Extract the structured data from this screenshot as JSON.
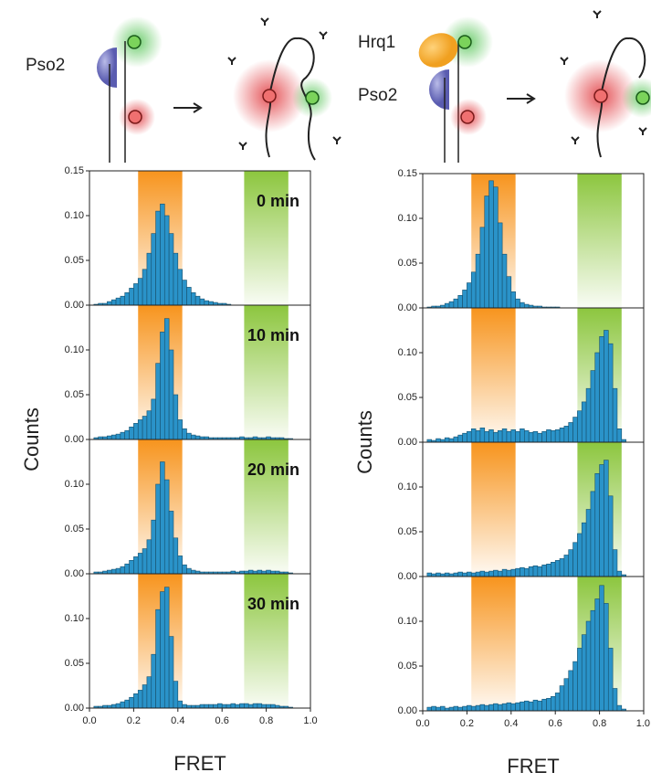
{
  "diagrams": [
    {
      "labels": [
        "Pso2"
      ]
    },
    {
      "labels": [
        "Hrq1",
        "Pso2"
      ]
    }
  ],
  "chart_data": [
    {
      "type": "histogram",
      "color": "#2a93c9",
      "annotation": "0 min",
      "xlim": [
        0,
        1
      ],
      "ylim": [
        0,
        0.15
      ],
      "yticks": [
        {
          "value": 0,
          "label": "0.00"
        },
        {
          "value": 0.05,
          "label": "0.05"
        },
        {
          "value": 0.1,
          "label": "0.10"
        },
        {
          "value": 0.15,
          "label": "0.15"
        }
      ],
      "highlights": [
        {
          "range": [
            0.22,
            0.42
          ],
          "color": "#f7941d"
        },
        {
          "range": [
            0.7,
            0.9
          ],
          "color": "#8cc63e"
        }
      ],
      "bins": [
        0.02,
        0.04,
        0.06,
        0.08,
        0.1,
        0.12,
        0.14,
        0.16,
        0.18,
        0.2,
        0.22,
        0.24,
        0.26,
        0.28,
        0.3,
        0.32,
        0.34,
        0.36,
        0.38,
        0.4,
        0.42,
        0.44,
        0.46,
        0.48,
        0.5,
        0.52,
        0.54,
        0.56,
        0.58,
        0.6,
        0.62,
        0.64,
        0.66,
        0.68,
        0.7,
        0.72,
        0.74,
        0.76,
        0.78,
        0.8,
        0.82,
        0.84,
        0.86,
        0.88,
        0.9,
        0.92
      ],
      "values": [
        0.001,
        0.002,
        0.002,
        0.004,
        0.006,
        0.008,
        0.01,
        0.014,
        0.019,
        0.024,
        0.03,
        0.04,
        0.058,
        0.08,
        0.105,
        0.113,
        0.1,
        0.08,
        0.058,
        0.04,
        0.028,
        0.02,
        0.014,
        0.01,
        0.007,
        0.005,
        0.004,
        0.003,
        0.002,
        0.002,
        0.001,
        0,
        0,
        0,
        0,
        0,
        0,
        0,
        0,
        0,
        0,
        0,
        0,
        0,
        0
      ]
    },
    {
      "type": "histogram",
      "color": "#2a93c9",
      "annotation": "10 min",
      "ylabel": "Counts",
      "xlim": [
        0,
        1
      ],
      "ylim": [
        0,
        0.15
      ],
      "yticks": [
        {
          "value": 0,
          "label": "0.00"
        },
        {
          "value": 0.05,
          "label": "0.05"
        },
        {
          "value": 0.1,
          "label": "0.10"
        }
      ],
      "highlights": [
        {
          "range": [
            0.22,
            0.42
          ],
          "color": "#f7941d"
        },
        {
          "range": [
            0.7,
            0.9
          ],
          "color": "#8cc63e"
        }
      ],
      "bins": [
        0.02,
        0.04,
        0.06,
        0.08,
        0.1,
        0.12,
        0.14,
        0.16,
        0.18,
        0.2,
        0.22,
        0.24,
        0.26,
        0.28,
        0.3,
        0.32,
        0.34,
        0.36,
        0.38,
        0.4,
        0.42,
        0.44,
        0.46,
        0.48,
        0.5,
        0.52,
        0.54,
        0.56,
        0.58,
        0.6,
        0.62,
        0.64,
        0.66,
        0.68,
        0.7,
        0.72,
        0.74,
        0.76,
        0.78,
        0.8,
        0.82,
        0.84,
        0.86,
        0.88,
        0.9,
        0.92
      ],
      "values": [
        0.002,
        0.003,
        0.003,
        0.004,
        0.005,
        0.006,
        0.008,
        0.01,
        0.014,
        0.018,
        0.022,
        0.026,
        0.032,
        0.045,
        0.085,
        0.12,
        0.135,
        0.1,
        0.05,
        0.022,
        0.012,
        0.007,
        0.005,
        0.004,
        0.003,
        0.003,
        0.002,
        0.002,
        0.002,
        0.002,
        0.002,
        0.002,
        0.002,
        0.003,
        0.002,
        0.002,
        0.003,
        0.002,
        0.002,
        0.003,
        0.002,
        0.002,
        0.002,
        0.001,
        0.001
      ]
    },
    {
      "type": "histogram",
      "color": "#2a93c9",
      "annotation": "20 min",
      "xlim": [
        0,
        1
      ],
      "ylim": [
        0,
        0.15
      ],
      "yticks": [
        {
          "value": 0,
          "label": "0.00"
        },
        {
          "value": 0.05,
          "label": "0.05"
        },
        {
          "value": 0.1,
          "label": "0.10"
        }
      ],
      "highlights": [
        {
          "range": [
            0.22,
            0.42
          ],
          "color": "#f7941d"
        },
        {
          "range": [
            0.7,
            0.9
          ],
          "color": "#8cc63e"
        }
      ],
      "bins": [
        0.02,
        0.04,
        0.06,
        0.08,
        0.1,
        0.12,
        0.14,
        0.16,
        0.18,
        0.2,
        0.22,
        0.24,
        0.26,
        0.28,
        0.3,
        0.32,
        0.34,
        0.36,
        0.38,
        0.4,
        0.42,
        0.44,
        0.46,
        0.48,
        0.5,
        0.52,
        0.54,
        0.56,
        0.58,
        0.6,
        0.62,
        0.64,
        0.66,
        0.68,
        0.7,
        0.72,
        0.74,
        0.76,
        0.78,
        0.8,
        0.82,
        0.84,
        0.86,
        0.88,
        0.9,
        0.92
      ],
      "values": [
        0.002,
        0.002,
        0.003,
        0.004,
        0.005,
        0.006,
        0.008,
        0.011,
        0.015,
        0.019,
        0.023,
        0.028,
        0.038,
        0.06,
        0.1,
        0.125,
        0.105,
        0.07,
        0.04,
        0.02,
        0.01,
        0.006,
        0.004,
        0.003,
        0.002,
        0.002,
        0.002,
        0.002,
        0.002,
        0.002,
        0.002,
        0.003,
        0.002,
        0.003,
        0.003,
        0.004,
        0.003,
        0.004,
        0.003,
        0.004,
        0.003,
        0.003,
        0.002,
        0.002,
        0.001
      ]
    },
    {
      "type": "histogram",
      "color": "#2a93c9",
      "annotation": "30 min",
      "xlabel": "FRET",
      "xlim": [
        0,
        1
      ],
      "ylim": [
        0,
        0.15
      ],
      "yticks": [
        {
          "value": 0,
          "label": "0.00"
        },
        {
          "value": 0.05,
          "label": "0.05"
        },
        {
          "value": 0.1,
          "label": "0.10"
        }
      ],
      "xticks": [
        {
          "value": 0,
          "label": "0.0"
        },
        {
          "value": 0.2,
          "label": "0.2"
        },
        {
          "value": 0.4,
          "label": "0.4"
        },
        {
          "value": 0.6,
          "label": "0.6"
        },
        {
          "value": 0.8,
          "label": "0.8"
        },
        {
          "value": 1,
          "label": "1.0"
        }
      ],
      "highlights": [
        {
          "range": [
            0.22,
            0.42
          ],
          "color": "#f7941d"
        },
        {
          "range": [
            0.7,
            0.9
          ],
          "color": "#8cc63e"
        }
      ],
      "bins": [
        0.02,
        0.04,
        0.06,
        0.08,
        0.1,
        0.12,
        0.14,
        0.16,
        0.18,
        0.2,
        0.22,
        0.24,
        0.26,
        0.28,
        0.3,
        0.32,
        0.34,
        0.36,
        0.38,
        0.4,
        0.42,
        0.44,
        0.46,
        0.48,
        0.5,
        0.52,
        0.54,
        0.56,
        0.58,
        0.6,
        0.62,
        0.64,
        0.66,
        0.68,
        0.7,
        0.72,
        0.74,
        0.76,
        0.78,
        0.8,
        0.82,
        0.84,
        0.86,
        0.88,
        0.9,
        0.92
      ],
      "values": [
        0.002,
        0.002,
        0.003,
        0.003,
        0.004,
        0.005,
        0.007,
        0.009,
        0.012,
        0.016,
        0.02,
        0.026,
        0.035,
        0.06,
        0.11,
        0.13,
        0.135,
        0.08,
        0.03,
        0.008,
        0.004,
        0.003,
        0.003,
        0.003,
        0.004,
        0.004,
        0.004,
        0.004,
        0.005,
        0.004,
        0.004,
        0.005,
        0.004,
        0.005,
        0.005,
        0.004,
        0.005,
        0.005,
        0.004,
        0.004,
        0.004,
        0.003,
        0.002,
        0.002,
        0.001
      ]
    },
    {
      "type": "histogram",
      "color": "#2a93c9",
      "xlim": [
        0,
        1
      ],
      "ylim": [
        0,
        0.15
      ],
      "yticks": [
        {
          "value": 0,
          "label": "0.00"
        },
        {
          "value": 0.05,
          "label": "0.05"
        },
        {
          "value": 0.1,
          "label": "0.10"
        },
        {
          "value": 0.15,
          "label": "0.15"
        }
      ],
      "highlights": [
        {
          "range": [
            0.22,
            0.42
          ],
          "color": "#f7941d"
        },
        {
          "range": [
            0.7,
            0.9
          ],
          "color": "#8cc63e"
        }
      ],
      "bins": [
        0.02,
        0.04,
        0.06,
        0.08,
        0.1,
        0.12,
        0.14,
        0.16,
        0.18,
        0.2,
        0.22,
        0.24,
        0.26,
        0.28,
        0.3,
        0.32,
        0.34,
        0.36,
        0.38,
        0.4,
        0.42,
        0.44,
        0.46,
        0.48,
        0.5,
        0.52,
        0.54,
        0.56,
        0.58,
        0.6,
        0.62,
        0.64,
        0.66,
        0.68,
        0.7,
        0.72,
        0.74,
        0.76,
        0.78,
        0.8,
        0.82,
        0.84,
        0.86,
        0.88,
        0.9,
        0.92
      ],
      "values": [
        0.001,
        0.002,
        0.002,
        0.003,
        0.005,
        0.007,
        0.01,
        0.014,
        0.02,
        0.028,
        0.04,
        0.06,
        0.09,
        0.125,
        0.142,
        0.135,
        0.095,
        0.06,
        0.035,
        0.018,
        0.01,
        0.006,
        0.004,
        0.003,
        0.002,
        0.002,
        0.001,
        0.001,
        0.001,
        0.001,
        0,
        0,
        0,
        0,
        0,
        0,
        0,
        0,
        0,
        0,
        0,
        0,
        0,
        0,
        0
      ]
    },
    {
      "type": "histogram",
      "color": "#2a93c9",
      "ylabel": "Counts",
      "xlim": [
        0,
        1
      ],
      "ylim": [
        0,
        0.15
      ],
      "yticks": [
        {
          "value": 0,
          "label": "0.00"
        },
        {
          "value": 0.05,
          "label": "0.05"
        },
        {
          "value": 0.1,
          "label": "0.10"
        }
      ],
      "highlights": [
        {
          "range": [
            0.22,
            0.42
          ],
          "color": "#f7941d"
        },
        {
          "range": [
            0.7,
            0.9
          ],
          "color": "#8cc63e"
        }
      ],
      "bins": [
        0.02,
        0.04,
        0.06,
        0.08,
        0.1,
        0.12,
        0.14,
        0.16,
        0.18,
        0.2,
        0.22,
        0.24,
        0.26,
        0.28,
        0.3,
        0.32,
        0.34,
        0.36,
        0.38,
        0.4,
        0.42,
        0.44,
        0.46,
        0.48,
        0.5,
        0.52,
        0.54,
        0.56,
        0.58,
        0.6,
        0.62,
        0.64,
        0.66,
        0.68,
        0.7,
        0.72,
        0.74,
        0.76,
        0.78,
        0.8,
        0.82,
        0.84,
        0.86,
        0.88,
        0.9,
        0.92
      ],
      "values": [
        0.003,
        0.002,
        0.004,
        0.003,
        0.005,
        0.004,
        0.006,
        0.008,
        0.01,
        0.012,
        0.015,
        0.013,
        0.016,
        0.012,
        0.014,
        0.011,
        0.013,
        0.015,
        0.012,
        0.014,
        0.012,
        0.015,
        0.013,
        0.011,
        0.012,
        0.01,
        0.012,
        0.014,
        0.013,
        0.014,
        0.016,
        0.018,
        0.022,
        0.028,
        0.035,
        0.045,
        0.06,
        0.08,
        0.1,
        0.118,
        0.125,
        0.11,
        0.06,
        0.015,
        0.003
      ]
    },
    {
      "type": "histogram",
      "color": "#2a93c9",
      "xlim": [
        0,
        1
      ],
      "ylim": [
        0,
        0.15
      ],
      "yticks": [
        {
          "value": 0,
          "label": "0.00"
        },
        {
          "value": 0.05,
          "label": "0.05"
        },
        {
          "value": 0.1,
          "label": "0.10"
        }
      ],
      "highlights": [
        {
          "range": [
            0.22,
            0.42
          ],
          "color": "#f7941d"
        },
        {
          "range": [
            0.7,
            0.9
          ],
          "color": "#8cc63e"
        }
      ],
      "bins": [
        0.02,
        0.04,
        0.06,
        0.08,
        0.1,
        0.12,
        0.14,
        0.16,
        0.18,
        0.2,
        0.22,
        0.24,
        0.26,
        0.28,
        0.3,
        0.32,
        0.34,
        0.36,
        0.38,
        0.4,
        0.42,
        0.44,
        0.46,
        0.48,
        0.5,
        0.52,
        0.54,
        0.56,
        0.58,
        0.6,
        0.62,
        0.64,
        0.66,
        0.68,
        0.7,
        0.72,
        0.74,
        0.76,
        0.78,
        0.8,
        0.82,
        0.84,
        0.86,
        0.88,
        0.9,
        0.92
      ],
      "values": [
        0.004,
        0.003,
        0.004,
        0.003,
        0.004,
        0.003,
        0.004,
        0.005,
        0.004,
        0.005,
        0.004,
        0.005,
        0.006,
        0.005,
        0.006,
        0.007,
        0.006,
        0.008,
        0.007,
        0.008,
        0.009,
        0.01,
        0.009,
        0.011,
        0.012,
        0.011,
        0.013,
        0.014,
        0.016,
        0.018,
        0.02,
        0.024,
        0.03,
        0.038,
        0.048,
        0.06,
        0.075,
        0.095,
        0.115,
        0.125,
        0.13,
        0.09,
        0.03,
        0.006,
        0.002
      ]
    },
    {
      "type": "histogram",
      "color": "#2a93c9",
      "xlabel": "FRET",
      "xlim": [
        0,
        1
      ],
      "ylim": [
        0,
        0.15
      ],
      "yticks": [
        {
          "value": 0,
          "label": "0.00"
        },
        {
          "value": 0.05,
          "label": "0.05"
        },
        {
          "value": 0.1,
          "label": "0.10"
        }
      ],
      "xticks": [
        {
          "value": 0,
          "label": "0.0"
        },
        {
          "value": 0.2,
          "label": "0.2"
        },
        {
          "value": 0.4,
          "label": "0.4"
        },
        {
          "value": 0.6,
          "label": "0.6"
        },
        {
          "value": 0.8,
          "label": "0.8"
        },
        {
          "value": 1,
          "label": "1.0"
        }
      ],
      "highlights": [
        {
          "range": [
            0.22,
            0.42
          ],
          "color": "#f7941d"
        },
        {
          "range": [
            0.7,
            0.9
          ],
          "color": "#8cc63e"
        }
      ],
      "bins": [
        0.02,
        0.04,
        0.06,
        0.08,
        0.1,
        0.12,
        0.14,
        0.16,
        0.18,
        0.2,
        0.22,
        0.24,
        0.26,
        0.28,
        0.3,
        0.32,
        0.34,
        0.36,
        0.38,
        0.4,
        0.42,
        0.44,
        0.46,
        0.48,
        0.5,
        0.52,
        0.54,
        0.56,
        0.58,
        0.6,
        0.62,
        0.64,
        0.66,
        0.68,
        0.7,
        0.72,
        0.74,
        0.76,
        0.78,
        0.8,
        0.82,
        0.84,
        0.86,
        0.88,
        0.9,
        0.92
      ],
      "values": [
        0.004,
        0.005,
        0.004,
        0.005,
        0.003,
        0.004,
        0.005,
        0.004,
        0.005,
        0.006,
        0.005,
        0.006,
        0.007,
        0.006,
        0.007,
        0.008,
        0.007,
        0.008,
        0.009,
        0.008,
        0.009,
        0.01,
        0.011,
        0.01,
        0.012,
        0.011,
        0.013,
        0.014,
        0.016,
        0.02,
        0.028,
        0.036,
        0.045,
        0.055,
        0.07,
        0.085,
        0.1,
        0.112,
        0.125,
        0.14,
        0.12,
        0.07,
        0.025,
        0.006,
        0.002
      ]
    }
  ]
}
